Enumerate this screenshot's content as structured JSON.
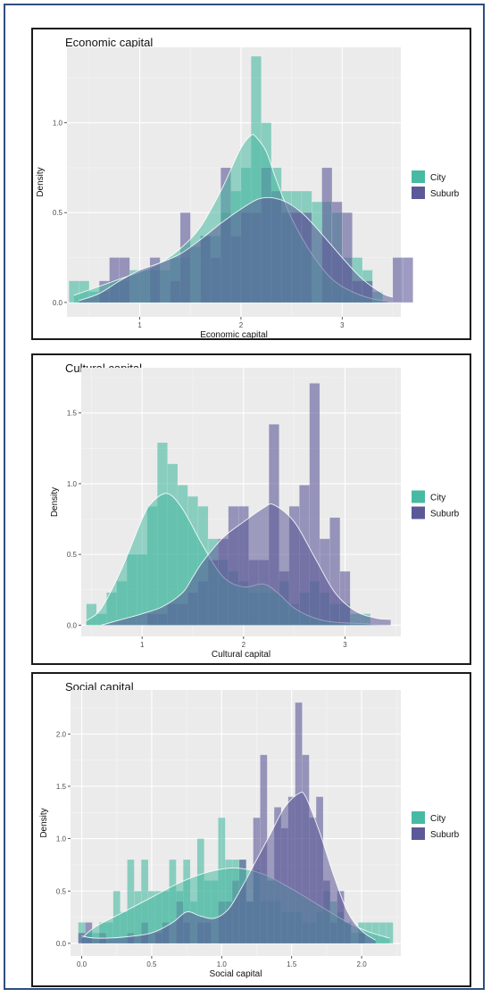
{
  "legend": {
    "items": [
      {
        "label": "City",
        "color": "#48b9a2"
      },
      {
        "label": "Suburb",
        "color": "#5b5997"
      }
    ]
  },
  "chart_data": [
    {
      "type": "histogram+density",
      "title": "Economic capital",
      "xlabel": "Economic capital",
      "ylabel": "Density",
      "xlim": [
        0.28,
        3.58
      ],
      "ylim": [
        -0.08,
        1.42
      ],
      "xticks": [
        1,
        2,
        3
      ],
      "yticks": [
        0.0,
        0.5,
        1.0
      ],
      "ytick_labels": [
        "0.0",
        "0.5",
        "1.0"
      ],
      "grid": true,
      "legend_position": "right",
      "bins": {
        "start": 0.3,
        "width": 0.1
      },
      "series": [
        {
          "name": "City",
          "color": "#48b9a2",
          "hist": [
            0.12,
            0.12,
            0.06,
            0.06,
            0.12,
            0.12,
            0.18,
            0.18,
            0.18,
            0.18,
            0.25,
            0.25,
            0.31,
            0.37,
            0.37,
            0.5,
            0.62,
            0.75,
            1.37,
            1.0,
            0.75,
            0.62,
            0.62,
            0.62,
            0.56,
            0.56,
            0.5,
            0.25,
            0.25,
            0.18,
            0.06
          ],
          "density": [
            [
              0.35,
              0.04
            ],
            [
              0.6,
              0.09
            ],
            [
              0.8,
              0.13
            ],
            [
              1.0,
              0.17
            ],
            [
              1.2,
              0.22
            ],
            [
              1.4,
              0.3
            ],
            [
              1.6,
              0.42
            ],
            [
              1.8,
              0.62
            ],
            [
              1.9,
              0.74
            ],
            [
              2.0,
              0.86
            ],
            [
              2.1,
              0.93
            ],
            [
              2.15,
              0.92
            ],
            [
              2.25,
              0.84
            ],
            [
              2.35,
              0.68
            ],
            [
              2.5,
              0.47
            ],
            [
              2.7,
              0.27
            ],
            [
              2.9,
              0.13
            ],
            [
              3.1,
              0.06
            ],
            [
              3.3,
              0.02
            ],
            [
              3.45,
              0.01
            ]
          ]
        },
        {
          "name": "Suburb",
          "color": "#5b5997",
          "hist": [
            0.0,
            0.0,
            0.0,
            0.12,
            0.25,
            0.25,
            0.0,
            0.0,
            0.25,
            0.0,
            0.12,
            0.5,
            0.0,
            0.37,
            0.25,
            0.75,
            0.37,
            0.5,
            0.5,
            0.75,
            0.62,
            0.5,
            0.5,
            0.5,
            0.0,
            0.75,
            0.56,
            0.5,
            0.12,
            0.12,
            0.0,
            0.0,
            0.25,
            0.25,
            0.0
          ],
          "density": [
            [
              0.4,
              0.01
            ],
            [
              0.6,
              0.05
            ],
            [
              0.8,
              0.12
            ],
            [
              1.0,
              0.18
            ],
            [
              1.2,
              0.22
            ],
            [
              1.4,
              0.27
            ],
            [
              1.6,
              0.35
            ],
            [
              1.8,
              0.44
            ],
            [
              2.0,
              0.52
            ],
            [
              2.2,
              0.58
            ],
            [
              2.4,
              0.57
            ],
            [
              2.6,
              0.5
            ],
            [
              2.8,
              0.38
            ],
            [
              3.0,
              0.25
            ],
            [
              3.2,
              0.13
            ],
            [
              3.4,
              0.05
            ],
            [
              3.5,
              0.03
            ]
          ]
        }
      ]
    },
    {
      "type": "histogram+density",
      "title": "Cultural capital",
      "xlabel": "Cultural capital",
      "ylabel": "Density",
      "xlim": [
        0.4,
        3.55
      ],
      "ylim": [
        -0.08,
        1.82
      ],
      "xticks": [
        1,
        2,
        3
      ],
      "yticks": [
        0.0,
        0.5,
        1.0,
        1.5
      ],
      "ytick_labels": [
        "0.0",
        "0.5",
        "1.0",
        "1.5"
      ],
      "grid": true,
      "legend_position": "right",
      "bins": {
        "start": 0.45,
        "width": 0.1
      },
      "series": [
        {
          "name": "City",
          "color": "#48b9a2",
          "hist": [
            0.15,
            0.08,
            0.23,
            0.31,
            0.5,
            0.5,
            0.84,
            1.29,
            1.14,
            0.99,
            0.91,
            0.84,
            0.61,
            0.46,
            0.38,
            0.31,
            0.23,
            0.23,
            0.23,
            0.31,
            0.15,
            0.23,
            0.31,
            0.23,
            0.15,
            0.15,
            0.08,
            0.08,
            0.0,
            0.0,
            0.0
          ],
          "density": [
            [
              0.45,
              0.03
            ],
            [
              0.6,
              0.12
            ],
            [
              0.8,
              0.4
            ],
            [
              1.0,
              0.75
            ],
            [
              1.1,
              0.87
            ],
            [
              1.25,
              0.93
            ],
            [
              1.4,
              0.82
            ],
            [
              1.6,
              0.56
            ],
            [
              1.8,
              0.34
            ],
            [
              2.0,
              0.27
            ],
            [
              2.2,
              0.29
            ],
            [
              2.35,
              0.22
            ],
            [
              2.5,
              0.12
            ],
            [
              2.7,
              0.05
            ],
            [
              2.9,
              0.02
            ],
            [
              3.2,
              0.01
            ],
            [
              3.4,
              0.0
            ]
          ]
        },
        {
          "name": "Suburb",
          "color": "#5b5997",
          "hist": [
            0.0,
            0.0,
            0.0,
            0.0,
            0.0,
            0.0,
            0.08,
            0.08,
            0.15,
            0.15,
            0.23,
            0.31,
            0.46,
            0.61,
            0.84,
            0.84,
            0.46,
            0.46,
            1.42,
            0.38,
            0.84,
            0.99,
            1.71,
            0.61,
            0.76,
            0.38,
            0.0,
            0.0,
            0.0,
            0.0,
            0.0,
            0.0,
            0.0,
            0.0,
            0.0,
            0.0,
            0.0,
            0.0,
            0.28
          ],
          "density": [
            [
              0.6,
              0.0
            ],
            [
              0.8,
              0.04
            ],
            [
              1.0,
              0.08
            ],
            [
              1.2,
              0.13
            ],
            [
              1.4,
              0.23
            ],
            [
              1.5,
              0.34
            ],
            [
              1.6,
              0.45
            ],
            [
              1.8,
              0.62
            ],
            [
              2.0,
              0.73
            ],
            [
              2.2,
              0.83
            ],
            [
              2.3,
              0.85
            ],
            [
              2.5,
              0.73
            ],
            [
              2.7,
              0.48
            ],
            [
              2.9,
              0.23
            ],
            [
              3.1,
              0.1
            ],
            [
              3.3,
              0.05
            ],
            [
              3.45,
              0.04
            ]
          ]
        }
      ]
    },
    {
      "type": "histogram+density",
      "title": "Social capital",
      "xlabel": "Social capital",
      "ylabel": "Density",
      "xlim": [
        -0.08,
        2.28
      ],
      "ylim": [
        -0.12,
        2.42
      ],
      "xticks": [
        0.0,
        0.5,
        1.0,
        1.5,
        2.0
      ],
      "xtick_labels": [
        "0.0",
        "0.5",
        "1.0",
        "1.5",
        "2.0"
      ],
      "yticks": [
        0.0,
        0.5,
        1.0,
        1.5,
        2.0
      ],
      "ytick_labels": [
        "0.0",
        "0.5",
        "1.0",
        "1.5",
        "2.0"
      ],
      "grid": true,
      "legend_position": "right",
      "bins": {
        "start": -0.025,
        "width": 0.05
      },
      "series": [
        {
          "name": "City",
          "color": "#48b9a2",
          "hist": [
            0.2,
            0.1,
            0.1,
            0.2,
            0.2,
            0.5,
            0.3,
            0.8,
            0.5,
            0.8,
            0.5,
            0.5,
            0.5,
            0.8,
            0.5,
            0.8,
            0.4,
            1.0,
            0.6,
            0.6,
            1.2,
            0.8,
            0.8,
            0.8,
            0.4,
            0.7,
            0.4,
            0.4,
            0.4,
            0.3,
            0.3,
            0.3,
            0.2,
            0.2,
            0.3,
            0.5,
            0.4,
            0.3,
            0.2,
            0.1,
            0.2,
            0.2,
            0.2,
            0.2,
            0.2
          ],
          "density": [
            [
              0.0,
              0.05
            ],
            [
              0.1,
              0.16
            ],
            [
              0.3,
              0.3
            ],
            [
              0.5,
              0.44
            ],
            [
              0.7,
              0.58
            ],
            [
              0.9,
              0.68
            ],
            [
              1.1,
              0.72
            ],
            [
              1.3,
              0.66
            ],
            [
              1.5,
              0.52
            ],
            [
              1.7,
              0.36
            ],
            [
              1.9,
              0.2
            ],
            [
              2.05,
              0.11
            ],
            [
              2.2,
              0.05
            ]
          ]
        },
        {
          "name": "Suburb",
          "color": "#5b5997",
          "hist": [
            0.1,
            0.2,
            0.0,
            0.1,
            0.0,
            0.0,
            0.0,
            0.1,
            0.0,
            0.2,
            0.0,
            0.1,
            0.2,
            0.0,
            0.4,
            0.2,
            0.0,
            0.2,
            0.2,
            0.0,
            0.4,
            0.4,
            0.6,
            0.8,
            0.4,
            1.2,
            1.8,
            0.6,
            1.3,
            1.1,
            1.4,
            2.3,
            1.8,
            1.2,
            1.4,
            0.6,
            0.2,
            0.5,
            0.2,
            0.0,
            0.1
          ],
          "density": [
            [
              0.0,
              0.07
            ],
            [
              0.1,
              0.05
            ],
            [
              0.3,
              0.06
            ],
            [
              0.5,
              0.1
            ],
            [
              0.65,
              0.2
            ],
            [
              0.75,
              0.3
            ],
            [
              0.85,
              0.26
            ],
            [
              0.95,
              0.24
            ],
            [
              1.05,
              0.33
            ],
            [
              1.15,
              0.55
            ],
            [
              1.25,
              0.8
            ],
            [
              1.35,
              1.05
            ],
            [
              1.45,
              1.3
            ],
            [
              1.55,
              1.43
            ],
            [
              1.6,
              1.4
            ],
            [
              1.7,
              1.06
            ],
            [
              1.8,
              0.65
            ],
            [
              1.9,
              0.3
            ],
            [
              2.0,
              0.12
            ],
            [
              2.1,
              0.03
            ]
          ]
        }
      ]
    }
  ]
}
